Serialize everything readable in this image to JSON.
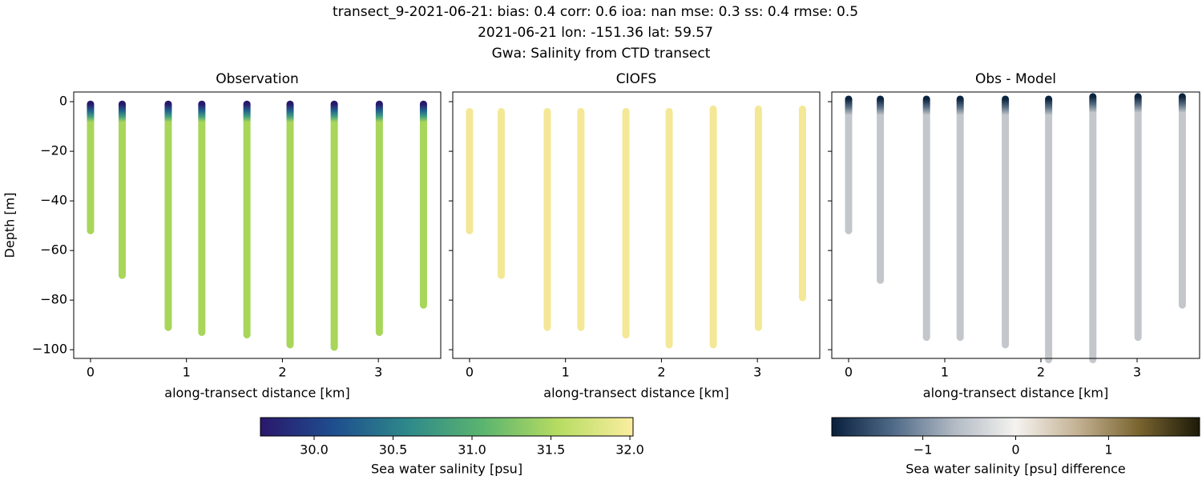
{
  "figure_title": [
    "transect_9-2021-06-21: bias: 0.4  corr: 0.6  ioa: nan  mse: 0.3  ss: 0.4  rmse: 0.5",
    "2021-06-21 lon: -151.36 lat: 59.57",
    "Gwa: Salinity from CTD transect"
  ],
  "chart_data": [
    {
      "type": "scatter",
      "title": "Observation",
      "xlabel": "along-transect distance [km]",
      "ylabel": "Depth [m]",
      "xlim": [
        -0.175,
        3.65
      ],
      "ylim": [
        -103.5,
        3.9
      ],
      "xticks": [
        0,
        1,
        2,
        3
      ],
      "yticks": [
        {
          "value": 0,
          "label": "0"
        },
        {
          "value": -20,
          "label": "−20"
        },
        {
          "value": -40,
          "label": "−40"
        },
        {
          "value": -60,
          "label": "−60"
        },
        {
          "value": -80,
          "label": "−80"
        },
        {
          "value": -100,
          "label": "−100"
        }
      ],
      "color": "#a8d65a",
      "top_colors": [
        "#2a186c",
        "#1f5c8c",
        "#3f9a82",
        "#a8d65a"
      ],
      "x": [
        0,
        0.33,
        0.81,
        1.16,
        1.63,
        2.08,
        2.54,
        3.01,
        3.47
      ],
      "top": [
        -1,
        -1,
        -1,
        -1,
        -1,
        -1,
        -1,
        -1,
        -1
      ],
      "bottom": [
        -52,
        -70,
        -91,
        -93,
        -94,
        -98,
        -99,
        -93,
        -82
      ]
    },
    {
      "type": "scatter",
      "title": "CIOFS",
      "xlabel": "along-transect distance [km]",
      "xlim": [
        -0.175,
        3.65
      ],
      "ylim": [
        -103.5,
        3.9
      ],
      "xticks": [
        0,
        1,
        2,
        3
      ],
      "color": "#f4e896",
      "top_colors": [
        "#f4e896",
        "#f4e896"
      ],
      "x": [
        0,
        0.33,
        0.81,
        1.16,
        1.63,
        2.08,
        2.54,
        3.01,
        3.47
      ],
      "top": [
        -4,
        -4,
        -4,
        -4,
        -4,
        -4,
        -3,
        -3,
        -3
      ],
      "bottom": [
        -52,
        -70,
        -91,
        -91,
        -94,
        -98,
        -98,
        -91,
        -79
      ]
    },
    {
      "type": "scatter",
      "title": "Obs - Model",
      "xlabel": "along-transect distance [km]",
      "xlim": [
        -0.175,
        3.65
      ],
      "ylim": [
        -103.5,
        3.9
      ],
      "xticks": [
        0,
        1,
        2,
        3
      ],
      "color": "#c3c7cb",
      "top_colors": [
        "#0b2440",
        "#5a6e84",
        "#c3c7cb"
      ],
      "x": [
        0,
        0.33,
        0.81,
        1.16,
        1.63,
        2.08,
        2.54,
        3.01,
        3.47
      ],
      "top": [
        1,
        1,
        1,
        1,
        1,
        1,
        2,
        2,
        2
      ],
      "bottom": [
        -52,
        -72,
        -95,
        -95,
        -98,
        -104,
        -104,
        -95,
        -82
      ]
    }
  ],
  "colorbars": [
    {
      "label": "Sea water salinity [psu]",
      "lim": [
        29.66,
        32.02
      ],
      "ticks": [
        {
          "value": 30,
          "label": "30.0"
        },
        {
          "value": 30.5,
          "label": "30.5"
        },
        {
          "value": 31,
          "label": "31.0"
        },
        {
          "value": 31.5,
          "label": "31.5"
        },
        {
          "value": 32,
          "label": "32.0"
        }
      ],
      "colors": [
        "#2a186c",
        "#1e4f8e",
        "#2f8a8a",
        "#5cb56e",
        "#b7dc62",
        "#fbeea0"
      ]
    },
    {
      "label": "Sea water salinity [psu] difference",
      "lim": [
        -1.98,
        1.98
      ],
      "ticks": [
        {
          "value": -1,
          "label": "−1"
        },
        0,
        1
      ],
      "colors": [
        "#09203d",
        "#4f6a88",
        "#b2bac4",
        "#f5f3f0",
        "#c4b294",
        "#7a6530",
        "#1c1a08"
      ]
    }
  ]
}
